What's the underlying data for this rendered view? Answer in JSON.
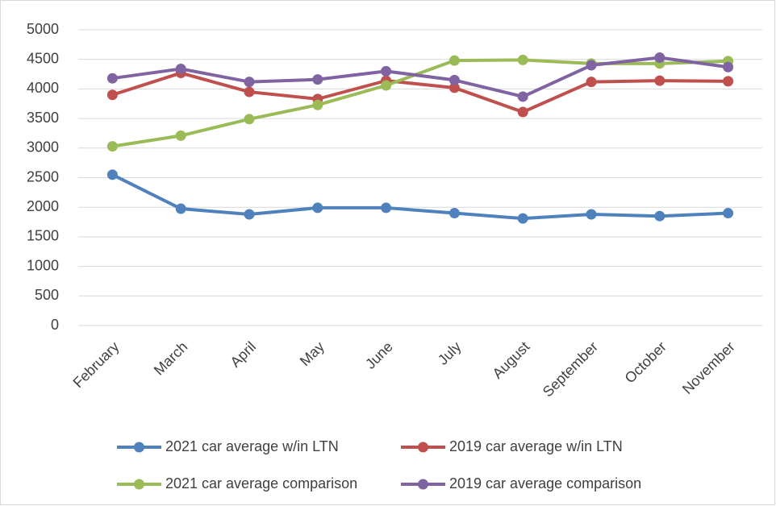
{
  "chart_data": {
    "type": "line",
    "categories": [
      "February",
      "March",
      "April",
      "May",
      "June",
      "July",
      "August",
      "September",
      "October",
      "November"
    ],
    "series": [
      {
        "name": "2021 car average w/in LTN",
        "color": "#4f81bd",
        "values": [
          2550,
          1975,
          1880,
          1990,
          1990,
          1900,
          1810,
          1880,
          1850,
          1900
        ]
      },
      {
        "name": "2019 car average w/in LTN",
        "color": "#c0504d",
        "values": [
          3900,
          4270,
          3950,
          3830,
          4140,
          4020,
          3610,
          4120,
          4140,
          4130
        ]
      },
      {
        "name": "2021 car average comparison",
        "color": "#9bbb59",
        "values": [
          3030,
          3210,
          3490,
          3730,
          4060,
          4480,
          4490,
          4430,
          4430,
          4470
        ]
      },
      {
        "name": "2019 car average comparison",
        "color": "#8064a2",
        "values": [
          4180,
          4340,
          4120,
          4160,
          4300,
          4150,
          3870,
          4400,
          4530,
          4370
        ]
      }
    ],
    "ylim": [
      0,
      5000
    ],
    "yticks": [
      0,
      500,
      1000,
      1500,
      2000,
      2500,
      3000,
      3500,
      4000,
      4500,
      5000
    ],
    "grid": true,
    "legend": "bottom"
  }
}
